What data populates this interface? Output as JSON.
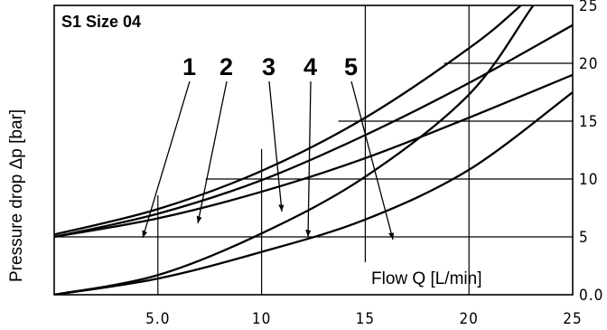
{
  "chart_data": {
    "type": "line",
    "title": "S1 Size 04",
    "xlabel": "Flow Q [L/min]",
    "ylabel": "Pressure drop Δp [bar]",
    "xlim": [
      0,
      25
    ],
    "ylim": [
      0,
      25
    ],
    "x_ticks": [
      "5.0",
      "10",
      "15",
      "20",
      "25"
    ],
    "y_ticks": [
      "0.0",
      "5",
      "10",
      "15",
      "20",
      "25"
    ],
    "grid": "partial",
    "series": [
      {
        "name": "1",
        "x": [
          0,
          5,
          10,
          15,
          20,
          22.5,
          25
        ],
        "y": [
          5.2,
          7.4,
          10.7,
          15.3,
          21.3,
          25,
          29.3
        ]
      },
      {
        "name": "2",
        "x": [
          0,
          5,
          10,
          15,
          20,
          25
        ],
        "y": [
          5.0,
          7.0,
          9.9,
          13.8,
          18.3,
          23.3
        ]
      },
      {
        "name": "3",
        "x": [
          0,
          5,
          10,
          15,
          20,
          25
        ],
        "y": [
          5.0,
          6.6,
          8.9,
          11.8,
          15.3,
          19.0
        ]
      },
      {
        "name": "4",
        "x": [
          0,
          5,
          10,
          15,
          20,
          23.1,
          25
        ],
        "y": [
          0.0,
          1.7,
          5.3,
          10.2,
          17.3,
          25,
          29.7
        ]
      },
      {
        "name": "5",
        "x": [
          0,
          5,
          10,
          15,
          20,
          25
        ],
        "y": [
          0.0,
          1.4,
          3.7,
          6.5,
          10.8,
          17.5
        ]
      }
    ],
    "curve_labels": [
      "1",
      "2",
      "3",
      "4",
      "5"
    ]
  }
}
